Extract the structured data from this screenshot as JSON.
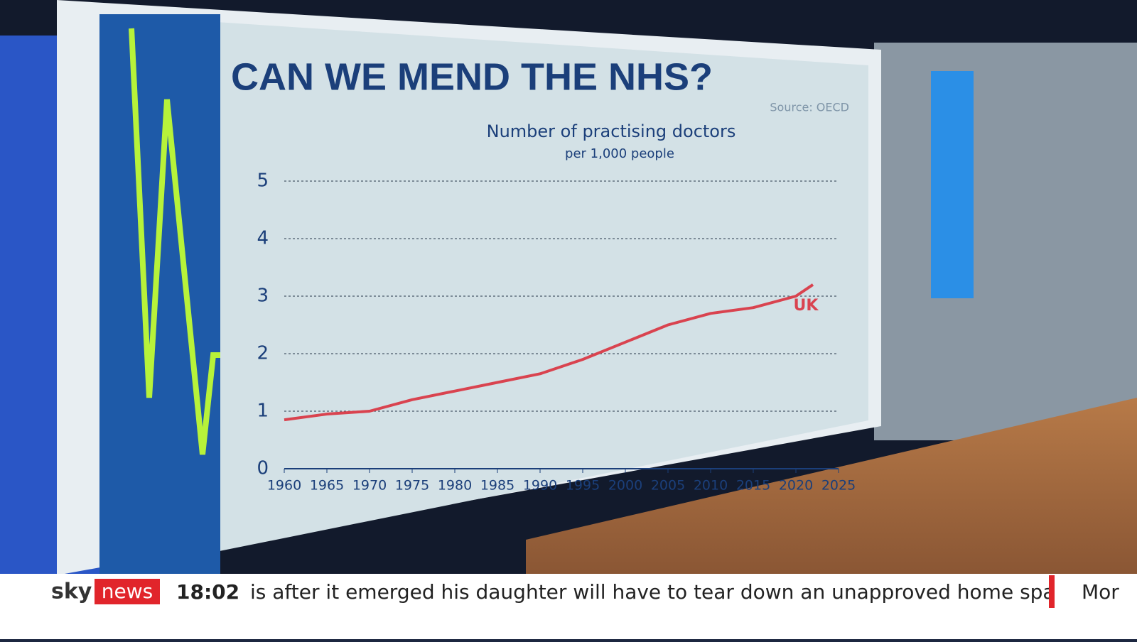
{
  "chart_data": {
    "type": "line",
    "title": "CAN WE MEND THE NHS?",
    "source": "Source: OECD",
    "subtitle": "Number of practising doctors",
    "unit_label": "per 1,000 people",
    "x": [
      1960,
      1965,
      1970,
      1975,
      1980,
      1985,
      1990,
      1995,
      2000,
      2005,
      2010,
      2015,
      2020,
      2022
    ],
    "series": [
      {
        "name": "UK",
        "color": "#d9434f",
        "values": [
          0.85,
          0.95,
          1.0,
          1.2,
          1.35,
          1.5,
          1.65,
          1.9,
          2.2,
          2.5,
          2.7,
          2.8,
          3.0,
          3.2
        ]
      }
    ],
    "xlim": [
      1960,
      2025
    ],
    "xticks": [
      1960,
      1965,
      1970,
      1975,
      1980,
      1985,
      1990,
      1995,
      2000,
      2005,
      2010,
      2015,
      2020,
      2025
    ],
    "ylim": [
      0,
      5
    ],
    "yticks": [
      0,
      1,
      2,
      3,
      4,
      5
    ],
    "grid": true
  },
  "ticker": {
    "brand_sky": "sky",
    "brand_news": "news",
    "time": "18:02",
    "headline": "is after it emerged his daughter will have to tear down an unapproved home spa",
    "next": "Mor"
  }
}
